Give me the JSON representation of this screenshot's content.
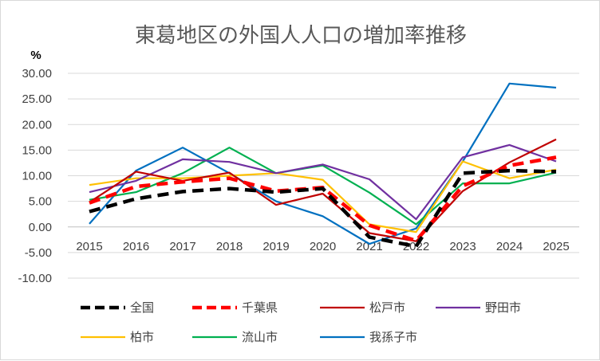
{
  "chart_data": {
    "type": "line",
    "title": "東葛地区の外国人人口の増加率推移",
    "ylabel": "%",
    "xlabel": "",
    "x": [
      "2015",
      "2016",
      "2017",
      "2018",
      "2019",
      "2020",
      "2021",
      "2022",
      "2023",
      "2024",
      "2025"
    ],
    "ylim": [
      -10,
      30
    ],
    "yticks": [
      "30.00",
      "25.00",
      "20.00",
      "15.00",
      "10.00",
      "5.00",
      "0.00",
      "-5.00",
      "-10.00"
    ],
    "grid": true,
    "legend_position": "bottom",
    "series": [
      {
        "name": "全国",
        "color": "#000000",
        "dash": "long-dash",
        "width": "heavy",
        "values": [
          3.0,
          5.5,
          6.9,
          7.5,
          6.8,
          7.5,
          -2.0,
          -3.8,
          10.5,
          11.0,
          10.8
        ]
      },
      {
        "name": "千葉県",
        "color": "#ff0000",
        "dash": "long-dash",
        "width": "heavy",
        "values": [
          4.7,
          7.9,
          8.8,
          9.5,
          7.0,
          7.7,
          0.3,
          -2.7,
          8.0,
          12.0,
          13.6
        ]
      },
      {
        "name": "松戸市",
        "color": "#c00000",
        "dash": "solid",
        "width": "normal",
        "values": [
          4.8,
          10.8,
          9.0,
          10.6,
          4.3,
          6.5,
          -1.2,
          -2.8,
          7.0,
          12.6,
          17.1
        ]
      },
      {
        "name": "野田市",
        "color": "#7030a0",
        "dash": "solid",
        "width": "normal",
        "values": [
          6.8,
          9.0,
          13.2,
          12.7,
          10.5,
          12.2,
          9.3,
          1.5,
          13.6,
          16.0,
          12.8
        ]
      },
      {
        "name": "柏市",
        "color": "#ffc000",
        "dash": "solid",
        "width": "normal",
        "values": [
          8.2,
          9.5,
          9.5,
          10.0,
          10.5,
          9.2,
          0.5,
          -1.0,
          12.8,
          9.5,
          11.2
        ]
      },
      {
        "name": "流山市",
        "color": "#00b050",
        "dash": "solid",
        "width": "normal",
        "values": [
          5.3,
          6.8,
          10.5,
          15.5,
          10.5,
          12.0,
          6.7,
          0.5,
          8.5,
          8.5,
          10.6
        ]
      },
      {
        "name": "我孫子市",
        "color": "#0070c0",
        "dash": "solid",
        "width": "normal",
        "values": [
          0.6,
          11.0,
          15.5,
          10.5,
          5.0,
          2.1,
          -3.3,
          -0.3,
          12.8,
          28.0,
          27.2
        ]
      }
    ]
  }
}
